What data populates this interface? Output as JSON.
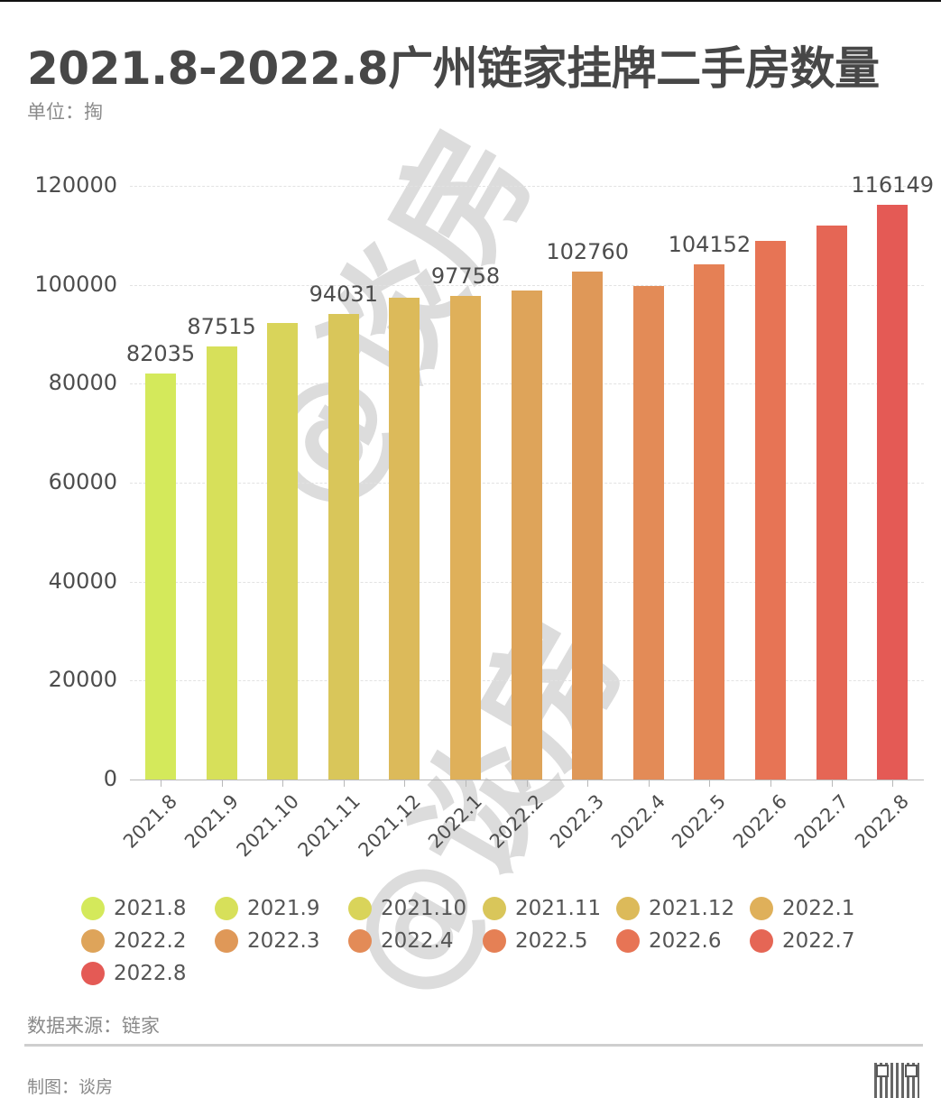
{
  "header": {
    "title": "2021.8-2022.8广州链家挂牌二手房数量",
    "unit": "单位：掏"
  },
  "footer": {
    "source": "数据来源：链家",
    "credit": "制图：谈房",
    "qr_code": "qr-code-icon"
  },
  "watermark": {
    "text": "@谈房"
  },
  "chart_data": {
    "type": "bar",
    "title": "2021.8-2022.8广州链家挂牌二手房数量",
    "subtitle": "单位：掏",
    "xlabel": "",
    "ylabel": "",
    "ylim": [
      0,
      120000
    ],
    "yticks": [
      0,
      20000,
      40000,
      60000,
      80000,
      100000,
      120000
    ],
    "grid": true,
    "legend_position": "bottom",
    "categories": [
      "2021.8",
      "2021.9",
      "2021.10",
      "2021.11",
      "2021.12",
      "2022.1",
      "2022.2",
      "2022.3",
      "2022.4",
      "2022.5",
      "2022.6",
      "2022.7",
      "2022.8"
    ],
    "values": [
      82035,
      87515,
      92300,
      94031,
      97400,
      97758,
      98900,
      102760,
      99800,
      104152,
      108900,
      112000,
      116149
    ],
    "data_labels": [
      "82035",
      "87515",
      "",
      "94031",
      "",
      "97758",
      "",
      "102760",
      "",
      "104152",
      "",
      "",
      "116149"
    ],
    "colors": [
      "#D4E95B",
      "#D7E05A",
      "#D9D45A",
      "#D9C65A",
      "#DCBA5A",
      "#DFB05A",
      "#DEA45A",
      "#DF9858",
      "#E38B57",
      "#E58055",
      "#E77455",
      "#E56655",
      "#E45A55"
    ],
    "legend": [
      "2021.8",
      "2021.9",
      "2021.10",
      "2021.11",
      "2021.12",
      "2022.1",
      "2022.2",
      "2022.3",
      "2022.4",
      "2022.5",
      "2022.6",
      "2022.7",
      "2022.8"
    ]
  }
}
